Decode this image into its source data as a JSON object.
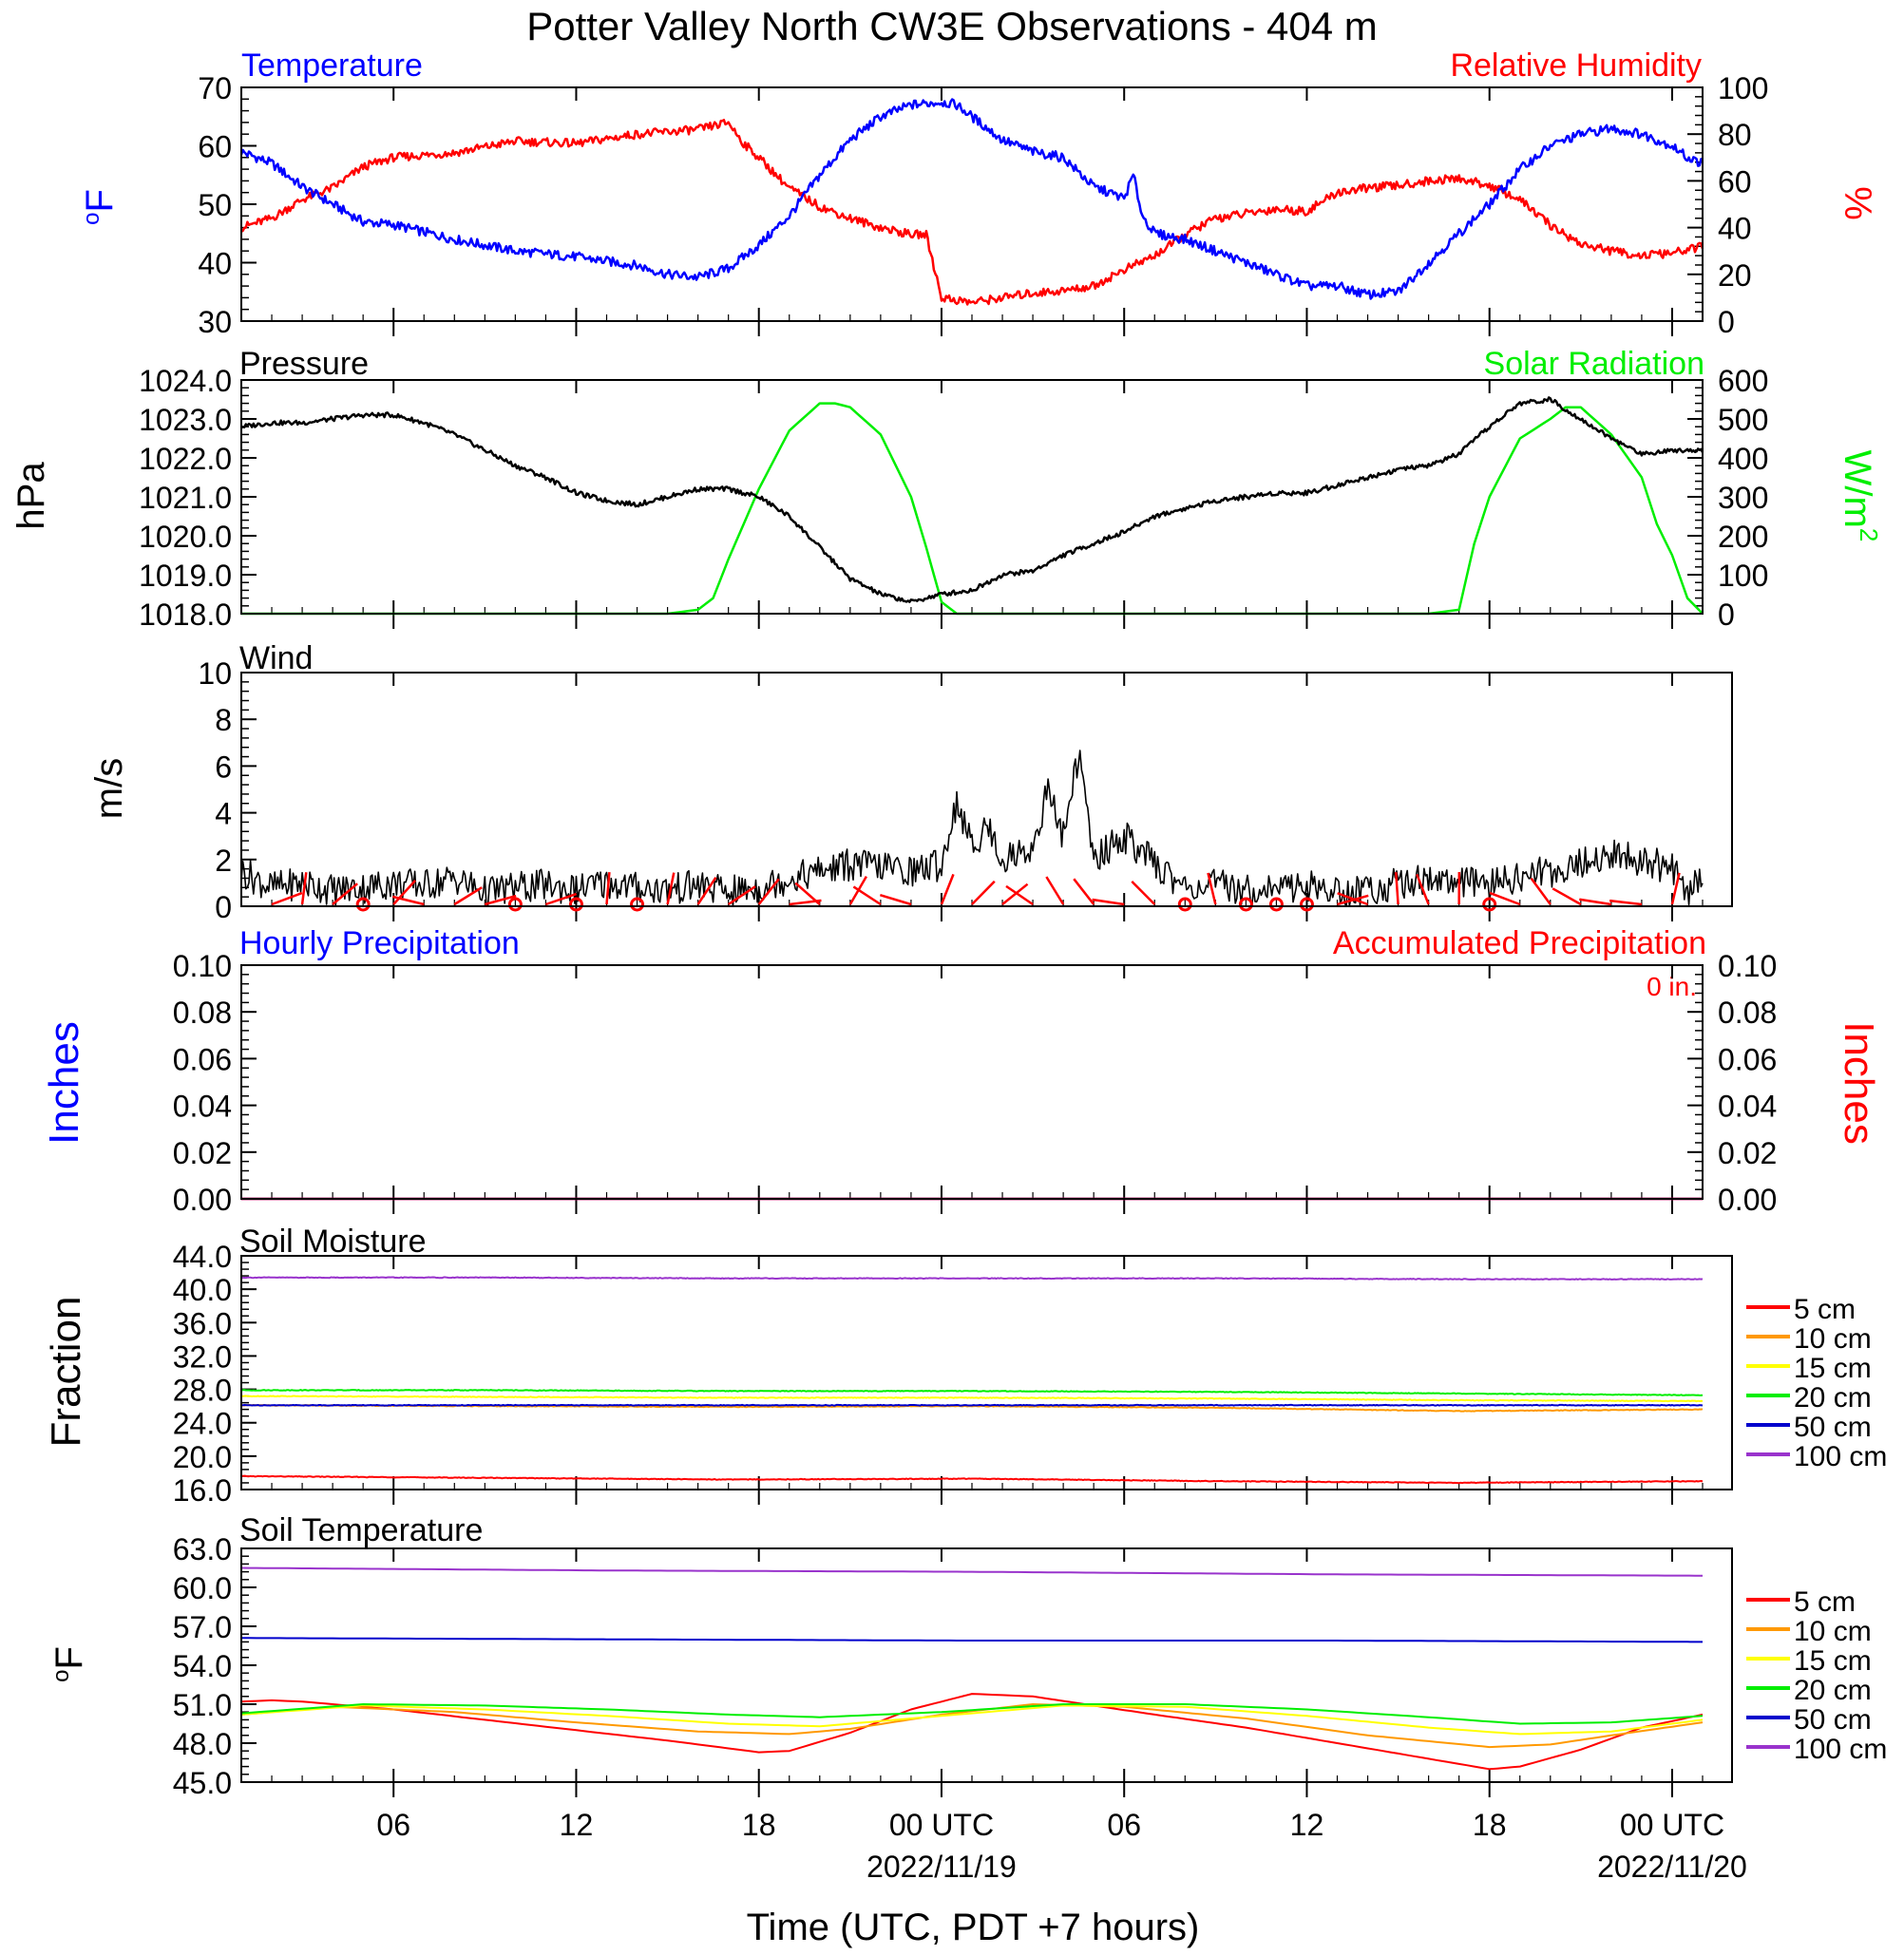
{
  "title": "Potter Valley North CW3E Observations - 404 m",
  "xaxis": {
    "label": "Time (UTC, PDT +7 hours)",
    "ticks": [
      {
        "hour": 6,
        "label": "06"
      },
      {
        "hour": 12,
        "label": "12"
      },
      {
        "hour": 18,
        "label": "18"
      },
      {
        "hour": 24,
        "label": "00 UTC"
      },
      {
        "hour": 30,
        "label": "06"
      },
      {
        "hour": 36,
        "label": "12"
      },
      {
        "hour": 42,
        "label": "18"
      },
      {
        "hour": 48,
        "label": "00 UTC"
      }
    ],
    "dates": [
      {
        "hour": 24,
        "label": "2022/11/19"
      },
      {
        "hour": 48,
        "label": "2022/11/20"
      }
    ],
    "range_hours": [
      1,
      49
    ]
  },
  "colors": {
    "temperature": "#0000ff",
    "humidity": "#ff0000",
    "pressure": "#000000",
    "solar": "#00ee00",
    "wind": "#000000",
    "barb": "#ff0000",
    "d5": "#ff0000",
    "d10": "#ff9900",
    "d15": "#ffff00",
    "d20": "#00ee00",
    "d50": "#0000cc",
    "d100": "#9933cc"
  },
  "panels": {
    "temp_rh": {
      "left_title": "Temperature",
      "right_title": "Relative Humidity",
      "left_unit_main": "o",
      "left_unit_rest": "F",
      "right_unit": "%",
      "left_ticks": [
        "30",
        "40",
        "50",
        "60",
        "70"
      ],
      "right_ticks": [
        "0",
        "20",
        "40",
        "60",
        "80",
        "100"
      ]
    },
    "pressure_solar": {
      "left_title": "Pressure",
      "right_title": "Solar Radiation",
      "left_unit": "hPa",
      "right_unit_main": "W/m",
      "right_unit_sup": "2",
      "left_ticks": [
        "1018.0",
        "1019.0",
        "1020.0",
        "1021.0",
        "1022.0",
        "1023.0",
        "1024.0"
      ],
      "right_ticks": [
        "0",
        "100",
        "200",
        "300",
        "400",
        "500",
        "600"
      ]
    },
    "wind": {
      "left_title": "Wind",
      "left_unit": "m/s",
      "left_ticks": [
        "0",
        "2",
        "4",
        "6",
        "8",
        "10"
      ]
    },
    "precip": {
      "left_title": "Hourly Precipitation",
      "right_title": "Accumulated Precipitation",
      "total_label": "0 in.",
      "left_unit": "Inches",
      "right_unit": "Inches",
      "left_ticks": [
        "0.00",
        "0.02",
        "0.04",
        "0.06",
        "0.08",
        "0.10"
      ],
      "right_ticks": [
        "0.00",
        "0.02",
        "0.04",
        "0.06",
        "0.08",
        "0.10"
      ]
    },
    "soil_moisture": {
      "left_title": "Soil Moisture",
      "left_unit": "Fraction",
      "left_ticks": [
        "16.0",
        "20.0",
        "24.0",
        "28.0",
        "32.0",
        "36.0",
        "40.0",
        "44.0"
      ],
      "legend": [
        "5 cm",
        "10 cm",
        "15 cm",
        "20 cm",
        "50 cm",
        "100 cm"
      ]
    },
    "soil_temp": {
      "left_title": "Soil Temperature",
      "left_unit_main": "o",
      "left_unit_rest": "F",
      "left_ticks": [
        "45.0",
        "48.0",
        "51.0",
        "54.0",
        "57.0",
        "60.0",
        "63.0"
      ],
      "legend": [
        "5 cm",
        "10 cm",
        "15 cm",
        "20 cm",
        "50 cm",
        "100 cm"
      ]
    }
  },
  "chart_data": [
    {
      "type": "line",
      "title": "Temperature / Relative Humidity",
      "x_unit": "hours since 2022/11/18 00 UTC",
      "ylim_left": [
        30,
        70
      ],
      "ylim_right": [
        0,
        100
      ],
      "series": [
        {
          "name": "Temperature",
          "axis": "left",
          "x": [
            1,
            2,
            3,
            4,
            5,
            6,
            8,
            10,
            12,
            14,
            15,
            16,
            17,
            18,
            19,
            20,
            21,
            22,
            23,
            24,
            24.5,
            25,
            26,
            27,
            28,
            29,
            29.5,
            30,
            30.3,
            30.6,
            31,
            32,
            33,
            34,
            35,
            36,
            37,
            38,
            39,
            40,
            41,
            42,
            43,
            44,
            45,
            46,
            47,
            48,
            48.5,
            49
          ],
          "y": [
            59,
            57,
            53,
            50,
            47,
            46.5,
            44,
            42,
            41,
            39.5,
            38,
            37.5,
            39,
            43,
            48,
            55,
            61,
            65,
            67,
            67.5,
            67,
            65,
            61,
            59,
            58,
            53,
            52,
            51,
            55,
            48,
            45,
            44,
            42,
            40,
            38,
            36,
            36,
            34.5,
            35,
            40,
            45,
            50,
            56,
            60,
            62,
            63,
            62,
            60,
            58,
            57
          ]
        },
        {
          "name": "Relative Humidity",
          "axis": "right",
          "x": [
            1,
            2,
            3,
            4,
            5,
            6,
            8,
            10,
            12,
            14,
            15,
            16,
            17,
            17.5,
            18,
            19,
            20,
            21,
            22,
            23,
            23.5,
            24,
            25,
            26,
            27,
            28,
            29,
            30,
            31,
            32,
            33,
            34,
            35,
            36,
            37,
            38,
            39,
            40,
            41,
            42,
            43,
            44,
            45,
            46,
            47,
            48,
            49
          ],
          "y": [
            40,
            44,
            52,
            57,
            66,
            70,
            72,
            77,
            76,
            80,
            81,
            82,
            85,
            76,
            70,
            57,
            49,
            44,
            40,
            37,
            37,
            10,
            8,
            10,
            12,
            13,
            15,
            22,
            28,
            37,
            44,
            46,
            48,
            47,
            55,
            57,
            58,
            60,
            61,
            58,
            52,
            41,
            33,
            30,
            28,
            29,
            32
          ]
        }
      ]
    },
    {
      "type": "line",
      "title": "Pressure / Solar Radiation",
      "x_unit": "hours since 2022/11/18 00 UTC",
      "ylim_left": [
        1018.0,
        1024.0
      ],
      "ylim_right": [
        0,
        600
      ],
      "series": [
        {
          "name": "Pressure",
          "axis": "left",
          "x": [
            1,
            2,
            3,
            4,
            5,
            6,
            7,
            8,
            9,
            10,
            11,
            12,
            13,
            14,
            15,
            16,
            17,
            18,
            19,
            20,
            21,
            22,
            23,
            24,
            25,
            26,
            27,
            28,
            29,
            30,
            31,
            32,
            33,
            34,
            35,
            36,
            37,
            38,
            39,
            40,
            41,
            42,
            43,
            44,
            45,
            46,
            47,
            48,
            49
          ],
          "y": [
            1022.8,
            1022.9,
            1022.9,
            1023,
            1023.1,
            1023.1,
            1022.9,
            1022.6,
            1022.2,
            1021.8,
            1021.5,
            1021.1,
            1020.9,
            1020.8,
            1021,
            1021.2,
            1021.2,
            1021,
            1020.5,
            1019.7,
            1018.9,
            1018.5,
            1018.3,
            1018.5,
            1018.6,
            1019,
            1019.1,
            1019.5,
            1019.8,
            1020.1,
            1020.5,
            1020.7,
            1020.9,
            1021,
            1021.1,
            1021.1,
            1021.3,
            1021.5,
            1021.7,
            1021.8,
            1022.1,
            1022.8,
            1023.4,
            1023.5,
            1023,
            1022.5,
            1022.1,
            1022.2,
            1022.2
          ]
        },
        {
          "name": "Solar Radiation",
          "axis": "right",
          "x": [
            1,
            15,
            16,
            16.5,
            17,
            18,
            19,
            20,
            20.5,
            21,
            22,
            23,
            23.5,
            24,
            24.5,
            25,
            40,
            41,
            41.5,
            42,
            43,
            44,
            44.5,
            45,
            46,
            47,
            47.5,
            48,
            48.5,
            49
          ],
          "y": [
            0,
            0,
            10,
            40,
            140,
            320,
            470,
            540,
            540,
            530,
            460,
            300,
            170,
            30,
            0,
            0,
            0,
            10,
            180,
            300,
            450,
            500,
            530,
            530,
            460,
            350,
            230,
            150,
            40,
            0
          ]
        }
      ]
    },
    {
      "type": "line",
      "title": "Wind",
      "x_unit": "hours since 2022/11/18 00 UTC",
      "ylim": [
        0,
        10
      ],
      "series": [
        {
          "name": "Wind",
          "x": [
            1,
            2,
            3,
            4,
            5,
            6,
            7,
            8,
            9,
            10,
            11,
            12,
            13,
            14,
            15,
            16,
            17,
            18,
            19,
            20,
            21,
            22,
            23,
            24,
            24.5,
            25,
            25.5,
            26,
            27,
            27.5,
            28,
            28.5,
            29,
            30,
            31,
            32,
            33,
            34,
            35,
            36,
            37,
            38,
            39,
            40,
            41,
            42,
            43,
            44,
            45,
            46,
            47,
            48,
            48.5,
            49
          ],
          "y": [
            1.5,
            0.8,
            1,
            0.7,
            0.8,
            1,
            0.9,
            1.2,
            0.6,
            0.8,
            0.9,
            0.7,
            1,
            0.8,
            0.7,
            0.9,
            0.6,
            0.8,
            1.2,
            1.5,
            1.8,
            1.7,
            1.5,
            1.8,
            4.5,
            2.5,
            3.5,
            2,
            2.5,
            5,
            3,
            6.5,
            2,
            3,
            1.8,
            0.8,
            0.9,
            0.7,
            0.8,
            0.9,
            0.6,
            0.7,
            1,
            1.2,
            1,
            0.9,
            1.3,
            1.5,
            1.8,
            2.2,
            2,
            1.6,
            0.5,
            1.4
          ]
        }
      ]
    },
    {
      "type": "line",
      "title": "Hourly Precipitation / Accumulated Precipitation",
      "x_unit": "hours since 2022/11/18 00 UTC",
      "ylim_left": [
        0,
        0.1
      ],
      "ylim_right": [
        0,
        0.1
      ],
      "series": [
        {
          "name": "Hourly Precipitation",
          "axis": "left",
          "x": [
            1,
            49
          ],
          "y": [
            0,
            0
          ]
        },
        {
          "name": "Accumulated Precipitation",
          "axis": "right",
          "x": [
            1,
            49
          ],
          "y": [
            0,
            0
          ]
        }
      ]
    },
    {
      "type": "line",
      "title": "Soil Moisture",
      "x_unit": "hours since 2022/11/18 00 UTC",
      "ylim": [
        16,
        44
      ],
      "series": [
        {
          "name": "5 cm",
          "x": [
            1,
            9,
            17,
            25,
            33,
            41,
            49
          ],
          "y": [
            17.6,
            17.4,
            17.2,
            17.3,
            17.0,
            16.8,
            17.0
          ]
        },
        {
          "name": "10 cm",
          "x": [
            1,
            9,
            17,
            25,
            33,
            41,
            49
          ],
          "y": [
            26.1,
            26.0,
            25.9,
            26.0,
            25.8,
            25.4,
            25.6
          ]
        },
        {
          "name": "15 cm",
          "x": [
            1,
            9,
            17,
            25,
            33,
            41,
            49
          ],
          "y": [
            27.2,
            27.1,
            27.0,
            27.0,
            26.9,
            26.7,
            26.6
          ]
        },
        {
          "name": "20 cm",
          "x": [
            1,
            9,
            17,
            25,
            33,
            41,
            49
          ],
          "y": [
            27.9,
            27.9,
            27.8,
            27.8,
            27.7,
            27.5,
            27.3
          ]
        },
        {
          "name": "50 cm",
          "x": [
            1,
            9,
            17,
            25,
            33,
            41,
            49
          ],
          "y": [
            26.1,
            26.1,
            26.1,
            26.1,
            26.1,
            26.1,
            26.1
          ]
        },
        {
          "name": "100 cm",
          "x": [
            1,
            9,
            17,
            25,
            33,
            41,
            49
          ],
          "y": [
            41.4,
            41.4,
            41.3,
            41.3,
            41.3,
            41.2,
            41.2
          ]
        }
      ]
    },
    {
      "type": "line",
      "title": "Soil Temperature",
      "x_unit": "hours since 2022/11/18 00 UTC",
      "ylim": [
        45,
        63
      ],
      "series": [
        {
          "name": "5 cm",
          "x": [
            1,
            2,
            3,
            6,
            9,
            12,
            15,
            18,
            19,
            21,
            23,
            25,
            27,
            29,
            31,
            34,
            37,
            40,
            42,
            43,
            45,
            47,
            49
          ],
          "y": [
            51.2,
            51.3,
            51.2,
            50.6,
            49.8,
            49.0,
            48.2,
            47.3,
            47.4,
            48.8,
            50.6,
            51.8,
            51.6,
            50.9,
            50.2,
            49.2,
            48.0,
            46.8,
            46.0,
            46.2,
            47.5,
            49.2,
            50.2
          ]
        },
        {
          "name": "10 cm",
          "x": [
            1,
            4,
            8,
            12,
            16,
            19,
            21,
            24,
            27,
            30,
            34,
            38,
            42,
            44,
            46,
            49
          ],
          "y": [
            50.2,
            50.8,
            50.4,
            49.6,
            48.9,
            48.7,
            49.1,
            50.2,
            51.0,
            50.8,
            49.9,
            48.6,
            47.7,
            47.9,
            48.6,
            49.6
          ]
        },
        {
          "name": "15 cm",
          "x": [
            1,
            5,
            9,
            13,
            17,
            20,
            24,
            28,
            32,
            36,
            40,
            43,
            46,
            49
          ],
          "y": [
            50.2,
            50.9,
            50.6,
            50.1,
            49.5,
            49.3,
            50.1,
            50.9,
            50.8,
            50.1,
            49.2,
            48.7,
            48.9,
            49.8
          ]
        },
        {
          "name": "20 cm",
          "x": [
            1,
            5,
            9,
            13,
            17,
            20,
            24,
            28,
            32,
            36,
            40,
            43,
            46,
            49
          ],
          "y": [
            50.3,
            51.0,
            50.9,
            50.6,
            50.2,
            50.0,
            50.4,
            51.0,
            51.0,
            50.6,
            50.0,
            49.5,
            49.6,
            50.1
          ]
        },
        {
          "name": "50 cm",
          "x": [
            1,
            13,
            25,
            37,
            49
          ],
          "y": [
            56.1,
            56.0,
            55.9,
            55.9,
            55.8
          ]
        },
        {
          "name": "100 cm",
          "x": [
            1,
            13,
            25,
            37,
            49
          ],
          "y": [
            61.5,
            61.3,
            61.2,
            61.0,
            60.9
          ]
        }
      ]
    }
  ]
}
